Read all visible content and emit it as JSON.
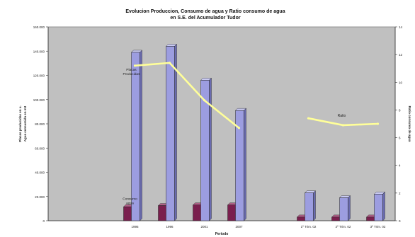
{
  "chart_data": {
    "type": "bar",
    "title_lines": [
      "Evolucion Produccion, Consumo de agua y Ratio consumo de agua",
      "en S.E. del Acumulador Tudor"
    ],
    "xlabel": "Periodo",
    "ylabel_left_lines": [
      "Placas producidas en u.",
      "Agua consumida en m3"
    ],
    "ylabel_right": "Ratio consumo de agua",
    "categories": [
      "",
      "",
      "1995",
      "1996",
      "2001",
      "2007",
      "",
      "1º Trim. 02",
      "2º Trim. 02",
      "3º Trim. 02"
    ],
    "y_ticks_left": [
      "0",
      "20.000",
      "40.000",
      "60.000",
      "80.000",
      "100.000",
      "120.000",
      "140.000",
      "160.000"
    ],
    "y_ticks_right": [
      "0",
      "2",
      "4",
      "6",
      "8",
      "10",
      "12",
      "14"
    ],
    "ylim_left": [
      0,
      160000
    ],
    "ylim_right": [
      0,
      14
    ],
    "series": [
      {
        "name": "Consumo agua",
        "axis": "left",
        "kind": "bar",
        "color": "#7a1f4e",
        "values": [
          null,
          null,
          11500,
          12500,
          13000,
          13000,
          null,
          3000,
          3000,
          3000
        ]
      },
      {
        "name": "Placas Producidas",
        "axis": "left",
        "kind": "bar",
        "color": "#9c9de0",
        "values": [
          null,
          null,
          139000,
          144000,
          116000,
          91000,
          null,
          23000,
          19000,
          22000
        ]
      },
      {
        "name": "Ratio",
        "axis": "right",
        "kind": "line",
        "color": "#ffff99",
        "values": [
          null,
          null,
          11.2,
          11.4,
          8.7,
          6.7,
          null,
          7.4,
          6.9,
          7.0
        ]
      }
    ],
    "annotations": [
      {
        "text_lines": [
          "Placas",
          "Producidas"
        ],
        "series_index": 1
      },
      {
        "text_lines": [
          "Ratio"
        ],
        "series_index": 2
      },
      {
        "text_lines": [
          "Consumo",
          "agua"
        ],
        "series_index": 0
      }
    ],
    "grid": false,
    "plot_background": "#c0c0c0",
    "legend": "none"
  }
}
